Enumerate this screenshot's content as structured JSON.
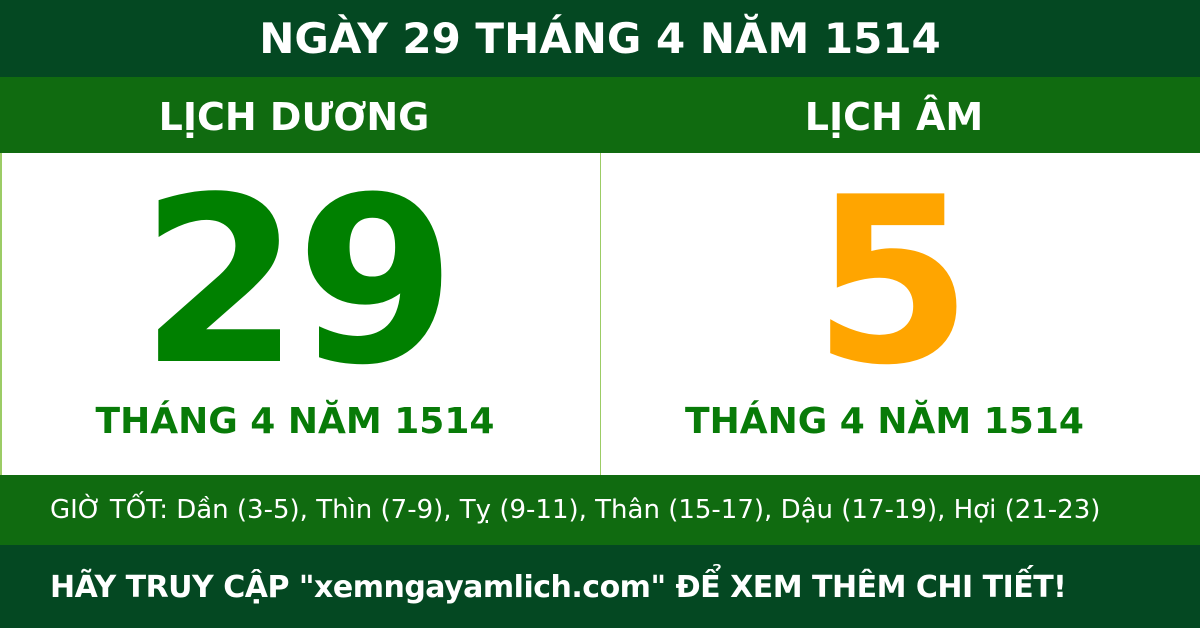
{
  "title": "NGÀY 29 THÁNG 4 NĂM 1514",
  "solar": {
    "heading": "LỊCH DƯƠNG",
    "day": "29",
    "month_year": "THÁNG 4 NĂM 1514"
  },
  "lunar": {
    "heading": "LỊCH ÂM",
    "day": "5",
    "month_year": "THÁNG 4 NĂM 1514"
  },
  "good_hours": "GIỜ TỐT: Dần (3-5), Thìn (7-9), Tỵ (9-11), Thân (15-17), Dậu (17-19), Hợi (21-23)",
  "footer": "HÃY TRUY CẬP \"xemngayamlich.com\" ĐỂ XEM THÊM CHI TIẾT!",
  "colors": {
    "dark_green": "#044822",
    "green": "#106b10",
    "solar_day": "#008000",
    "lunar_day": "#ffa500"
  }
}
